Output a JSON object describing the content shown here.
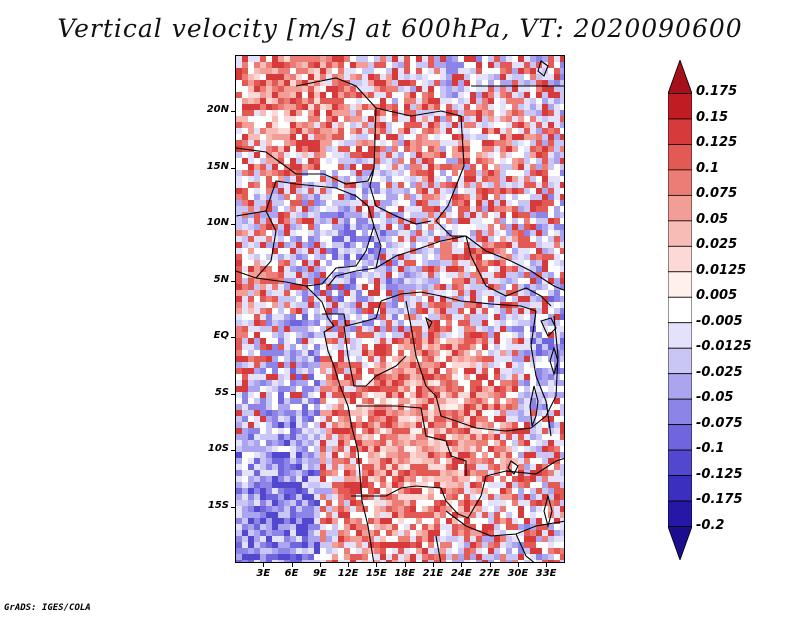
{
  "title": "Vertical velocity [m/s] at 600hPa, VT: 2020090600",
  "credit": "GrADS: IGES/COLA",
  "map": {
    "region": "Central Africa",
    "projection": "latlon",
    "lon_range_deg": [
      0,
      35
    ],
    "lat_range_deg": [
      -20,
      25
    ],
    "lat_ticks": [
      "20N",
      "15N",
      "10N",
      "5N",
      "EQ",
      "5S",
      "10S",
      "15S"
    ],
    "lon_ticks": [
      "3E",
      "6E",
      "9E",
      "12E",
      "15E",
      "18E",
      "21E",
      "24E",
      "27E",
      "30E",
      "33E"
    ]
  },
  "colorbar": {
    "levels": [
      "0.175",
      "0.15",
      "0.125",
      "0.1",
      "0.075",
      "0.05",
      "0.025",
      "0.0125",
      "0.005",
      "-0.005",
      "-0.0125",
      "-0.025",
      "-0.05",
      "-0.075",
      "-0.1",
      "-0.125",
      "-0.175",
      "-0.2"
    ],
    "colors": [
      "#a6101a",
      "#c11c24",
      "#d73a3a",
      "#e35a55",
      "#ec7d76",
      "#f39d97",
      "#f8bcb7",
      "#fcd9d6",
      "#fff0ee",
      "#ffffff",
      "#e4e2fb",
      "#c9c5f5",
      "#aba5ef",
      "#8d84e7",
      "#6f65dd",
      "#5148cf",
      "#3a2fbe",
      "#2618a7",
      "#190f8e"
    ]
  }
}
